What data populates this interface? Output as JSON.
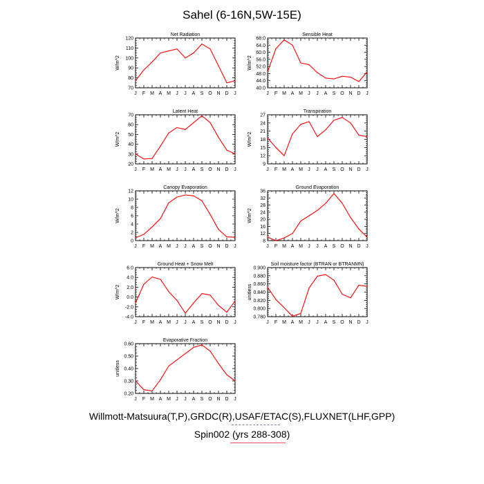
{
  "title": "Sahel (6-16N,5W-15E)",
  "footer": {
    "source": "Willmott-Matsuura(T,P),GRDC(R),USAF/ETAC(S),FLUXNET(LHF,GPP)",
    "run": "Spin002 (yrs 288-308)"
  },
  "colors": {
    "series": "#ff0000",
    "axis": "#000000",
    "dash": "#8a7ab0",
    "underline": "#e8536a"
  },
  "chart_data": [
    {
      "type": "line",
      "title": "Net Radiation",
      "ylabel": "W/m^2",
      "categories": [
        "J",
        "F",
        "M",
        "A",
        "M",
        "J",
        "J",
        "A",
        "S",
        "O",
        "N",
        "D",
        "J"
      ],
      "ylim": [
        70,
        120
      ],
      "yticks": [
        "70",
        "80",
        "90",
        "100",
        "110",
        "120"
      ],
      "yticks_values": [
        70,
        80,
        90,
        100,
        110,
        120
      ],
      "values": [
        77,
        88,
        96,
        105,
        107,
        109,
        100,
        105,
        114,
        109,
        92,
        75,
        77
      ]
    },
    {
      "type": "line",
      "title": "Sensible Heat",
      "ylabel": "W/m^2",
      "categories": [
        "J",
        "F",
        "M",
        "A",
        "M",
        "J",
        "J",
        "A",
        "S",
        "O",
        "N",
        "D",
        "J"
      ],
      "ylim": [
        40,
        68
      ],
      "yticks": [
        "40.0",
        "44.0",
        "48.0",
        "52.0",
        "56.0",
        "60.0",
        "64.0",
        "68.0"
      ],
      "yticks_values": [
        40,
        44,
        48,
        52,
        56,
        60,
        64,
        68
      ],
      "values": [
        49,
        62,
        67,
        64,
        54,
        53,
        48.5,
        45.5,
        45,
        46.5,
        46,
        43.5,
        49
      ]
    },
    {
      "type": "line",
      "title": "Latent Heat",
      "ylabel": "W/m^2",
      "categories": [
        "J",
        "F",
        "M",
        "A",
        "M",
        "J",
        "J",
        "A",
        "S",
        "O",
        "N",
        "D",
        "J"
      ],
      "ylim": [
        20,
        70
      ],
      "yticks": [
        "20",
        "30",
        "40",
        "50",
        "60",
        "70"
      ],
      "yticks_values": [
        20,
        30,
        40,
        50,
        60,
        70
      ],
      "values": [
        30,
        25,
        25.5,
        38,
        51.5,
        57,
        55,
        62,
        69,
        62,
        47,
        34,
        30
      ]
    },
    {
      "type": "line",
      "title": "Transpiration",
      "ylabel": "W/m^2",
      "categories": [
        "J",
        "F",
        "M",
        "A",
        "M",
        "J",
        "J",
        "A",
        "S",
        "O",
        "N",
        "D",
        "J"
      ],
      "ylim": [
        9,
        27
      ],
      "yticks": [
        "9",
        "12",
        "15",
        "18",
        "21",
        "24",
        "27"
      ],
      "yticks_values": [
        9,
        12,
        15,
        18,
        21,
        24,
        27
      ],
      "values": [
        18.5,
        15,
        12,
        20,
        23.5,
        24.5,
        19,
        21.5,
        25,
        26,
        24,
        19.5,
        19
      ]
    },
    {
      "type": "line",
      "title": "Canopy Evaporation",
      "ylabel": "W/m^2",
      "categories": [
        "J",
        "F",
        "M",
        "A",
        "M",
        "J",
        "J",
        "A",
        "S",
        "O",
        "N",
        "D",
        "J"
      ],
      "ylim": [
        0,
        12
      ],
      "yticks": [
        "0",
        "2",
        "4",
        "6",
        "8",
        "10",
        "12"
      ],
      "yticks_values": [
        0,
        2,
        4,
        6,
        8,
        10,
        12
      ],
      "values": [
        0.7,
        1.5,
        3.3,
        5.3,
        9.1,
        10.5,
        11,
        10.8,
        9.6,
        6.3,
        2.7,
        0.9,
        0.8
      ]
    },
    {
      "type": "line",
      "title": "Ground Evaporation",
      "ylabel": "W/m^2",
      "categories": [
        "J",
        "F",
        "M",
        "A",
        "M",
        "J",
        "J",
        "A",
        "S",
        "O",
        "N",
        "D",
        "J"
      ],
      "ylim": [
        8,
        36
      ],
      "yticks": [
        "8",
        "12",
        "16",
        "20",
        "24",
        "28",
        "32",
        "36"
      ],
      "yticks_values": [
        8,
        12,
        16,
        20,
        24,
        28,
        32,
        36
      ],
      "values": [
        10,
        8,
        9.5,
        12,
        19,
        22,
        25,
        29,
        34.5,
        29,
        21,
        14.5,
        10
      ]
    },
    {
      "type": "line",
      "title": "Ground Heat + Snow Melt",
      "ylabel": "W/m^2",
      "categories": [
        "J",
        "F",
        "M",
        "A",
        "M",
        "J",
        "J",
        "A",
        "S",
        "O",
        "N",
        "D",
        "J"
      ],
      "ylim": [
        -4,
        6
      ],
      "yticks": [
        "-4.0",
        "-2.0",
        "0.0",
        "2.0",
        "4.0",
        "6.0"
      ],
      "yticks_values": [
        -4,
        -2,
        0,
        2,
        4,
        6
      ],
      "values": [
        -1.2,
        2.6,
        4.1,
        3.6,
        1.1,
        -0.7,
        -3.3,
        -1.2,
        0.7,
        0.4,
        -1.7,
        -3.1,
        -0.8
      ]
    },
    {
      "type": "line",
      "title": "Soil moisture factor (BTRAN or BTRANMN)",
      "ylabel": "unitless",
      "categories": [
        "J",
        "F",
        "M",
        "A",
        "M",
        "J",
        "J",
        "A",
        "S",
        "O",
        "N",
        "D",
        "J"
      ],
      "ylim": [
        0.78,
        0.9
      ],
      "yticks": [
        "0.780",
        "0.800",
        "0.820",
        "0.840",
        "0.860",
        "0.880",
        "0.900"
      ],
      "yticks_values": [
        0.78,
        0.8,
        0.82,
        0.84,
        0.86,
        0.88,
        0.9
      ],
      "values": [
        0.852,
        0.822,
        0.802,
        0.781,
        0.788,
        0.85,
        0.879,
        0.883,
        0.869,
        0.835,
        0.826,
        0.857,
        0.854
      ]
    },
    {
      "type": "line",
      "title": "Evaporative Fraction",
      "ylabel": "unitless",
      "categories": [
        "J",
        "F",
        "M",
        "A",
        "M",
        "J",
        "J",
        "A",
        "S",
        "O",
        "N",
        "D",
        "J"
      ],
      "ylim": [
        0.2,
        0.6
      ],
      "yticks": [
        "0.20",
        "0.30",
        "0.40",
        "0.50",
        "0.60"
      ],
      "yticks_values": [
        0.2,
        0.3,
        0.4,
        0.5,
        0.6
      ],
      "values": [
        0.3,
        0.23,
        0.22,
        0.31,
        0.42,
        0.47,
        0.52,
        0.57,
        0.59,
        0.54,
        0.44,
        0.35,
        0.3
      ]
    }
  ]
}
